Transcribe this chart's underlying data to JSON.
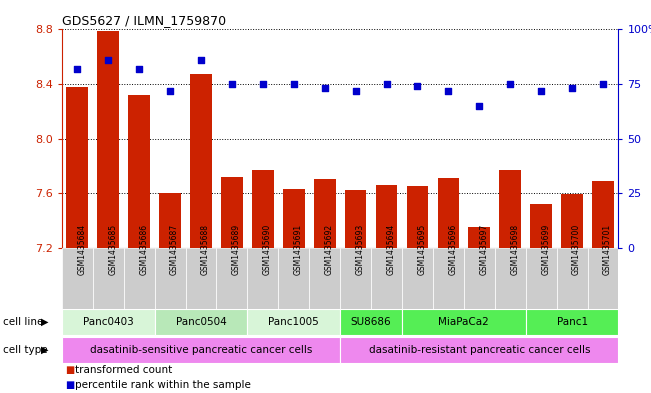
{
  "title": "GDS5627 / ILMN_1759870",
  "samples": [
    "GSM1435684",
    "GSM1435685",
    "GSM1435686",
    "GSM1435687",
    "GSM1435688",
    "GSM1435689",
    "GSM1435690",
    "GSM1435691",
    "GSM1435692",
    "GSM1435693",
    "GSM1435694",
    "GSM1435695",
    "GSM1435696",
    "GSM1435697",
    "GSM1435698",
    "GSM1435699",
    "GSM1435700",
    "GSM1435701"
  ],
  "transformed_count": [
    8.38,
    8.79,
    8.32,
    7.6,
    8.47,
    7.72,
    7.77,
    7.63,
    7.7,
    7.62,
    7.66,
    7.65,
    7.71,
    7.35,
    7.77,
    7.52,
    7.59,
    7.69
  ],
  "percentile_rank": [
    82,
    86,
    82,
    72,
    86,
    75,
    75,
    75,
    73,
    72,
    75,
    74,
    72,
    65,
    75,
    72,
    73,
    75
  ],
  "ymin": 7.2,
  "ymax": 8.8,
  "yticks": [
    7.2,
    7.6,
    8.0,
    8.4,
    8.8
  ],
  "right_yticks": [
    0,
    25,
    50,
    75,
    100
  ],
  "cell_lines": [
    {
      "name": "Panc0403",
      "start": 0,
      "end": 3,
      "color": "#d8f5d8"
    },
    {
      "name": "Panc0504",
      "start": 3,
      "end": 6,
      "color": "#b8e8b8"
    },
    {
      "name": "Panc1005",
      "start": 6,
      "end": 9,
      "color": "#d8f5d8"
    },
    {
      "name": "SU8686",
      "start": 9,
      "end": 11,
      "color": "#55ee55"
    },
    {
      "name": "MiaPaCa2",
      "start": 11,
      "end": 15,
      "color": "#55ee55"
    },
    {
      "name": "Panc1",
      "start": 15,
      "end": 18,
      "color": "#55ee55"
    }
  ],
  "cell_types": [
    {
      "name": "dasatinib-sensitive pancreatic cancer cells",
      "start": 0,
      "end": 9,
      "color": "#ee88ee"
    },
    {
      "name": "dasatinib-resistant pancreatic cancer cells",
      "start": 9,
      "end": 18,
      "color": "#ee88ee"
    }
  ],
  "bar_color": "#cc2200",
  "dot_color": "#0000cc",
  "grid_color": "#000000",
  "left_axis_color": "#cc2200",
  "right_axis_color": "#0000cc",
  "sample_bg_color": "#cccccc",
  "legend_items": [
    {
      "label": "transformed count",
      "color": "#cc2200"
    },
    {
      "label": "percentile rank within the sample",
      "color": "#0000cc"
    }
  ]
}
